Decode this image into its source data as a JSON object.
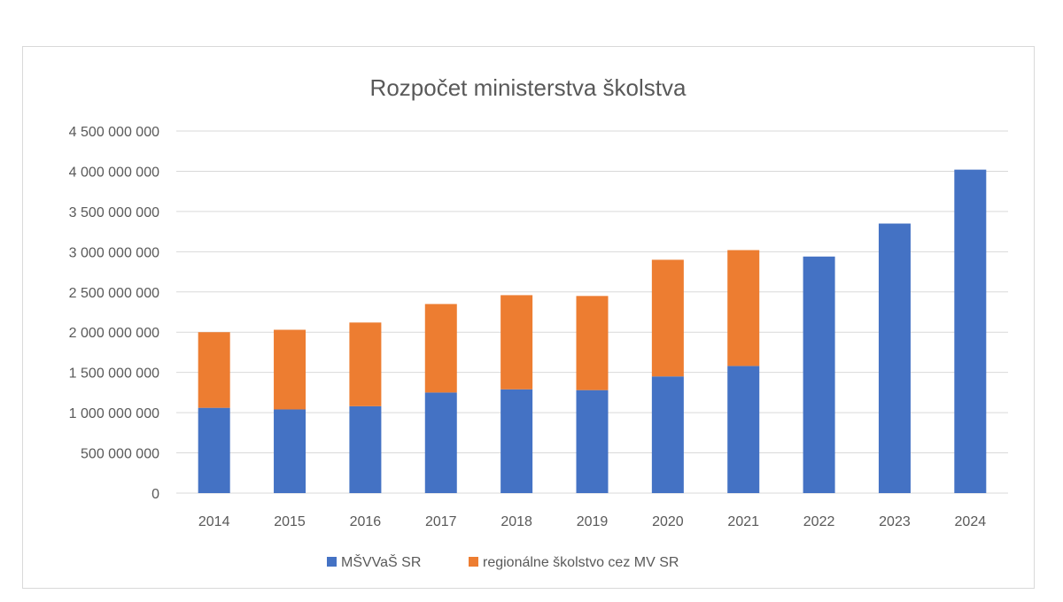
{
  "chart_data": {
    "type": "bar",
    "stacked": true,
    "title": "Rozpočet  ministerstva školstva",
    "xlabel": "",
    "ylabel": "",
    "categories": [
      "2014",
      "2015",
      "2016",
      "2017",
      "2018",
      "2019",
      "2020",
      "2021",
      "2022",
      "2023",
      "2024"
    ],
    "series": [
      {
        "name": "MŠVVaŠ SR",
        "color": "#4472C4",
        "values": [
          1060000000,
          1040000000,
          1080000000,
          1250000000,
          1290000000,
          1280000000,
          1450000000,
          1580000000,
          2940000000,
          3350000000,
          4020000000
        ]
      },
      {
        "name": "regionálne školstvo cez MV SR",
        "color": "#ED7D31",
        "values": [
          940000000,
          990000000,
          1040000000,
          1100000000,
          1170000000,
          1170000000,
          1450000000,
          1440000000,
          0,
          0,
          0
        ]
      }
    ],
    "ylim": [
      0,
      4500000000
    ],
    "y_ticks": [
      0,
      500000000,
      1000000000,
      1500000000,
      2000000000,
      2500000000,
      3000000000,
      3500000000,
      4000000000,
      4500000000
    ],
    "y_tick_labels": [
      "0",
      "500 000 000",
      "1 000 000 000",
      "1 500 000 000",
      "2 000 000 000",
      "2 500 000 000",
      "3 000 000 000",
      "3 500 000 000",
      "4 000 000 000",
      "4 500 000 000"
    ],
    "grid": true,
    "gridline_color": "#d9d9d9",
    "legend_position": "bottom"
  }
}
